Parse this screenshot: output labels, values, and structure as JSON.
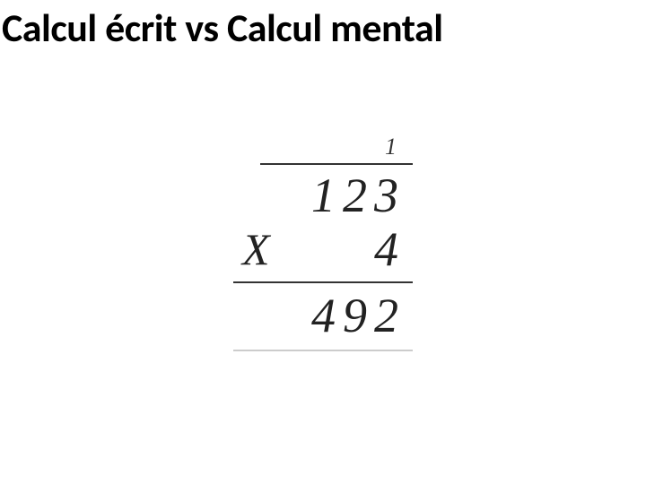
{
  "page": {
    "title": "Calcul écrit vs Calcul mental",
    "background_color": "#ffffff",
    "title_color": "#000000",
    "title_fontsize": 44,
    "title_fontweight": 700
  },
  "multiplication": {
    "carry": "1",
    "multiplicand": "123",
    "operator": "X",
    "multiplier": "4",
    "product": "492",
    "font_family": "Segoe Script, Comic Sans MS, cursive",
    "digit_fontsize": 54,
    "carry_fontsize": 26,
    "operator_fontsize": 50,
    "rule_color": "#333333",
    "text_color": "#222222"
  }
}
